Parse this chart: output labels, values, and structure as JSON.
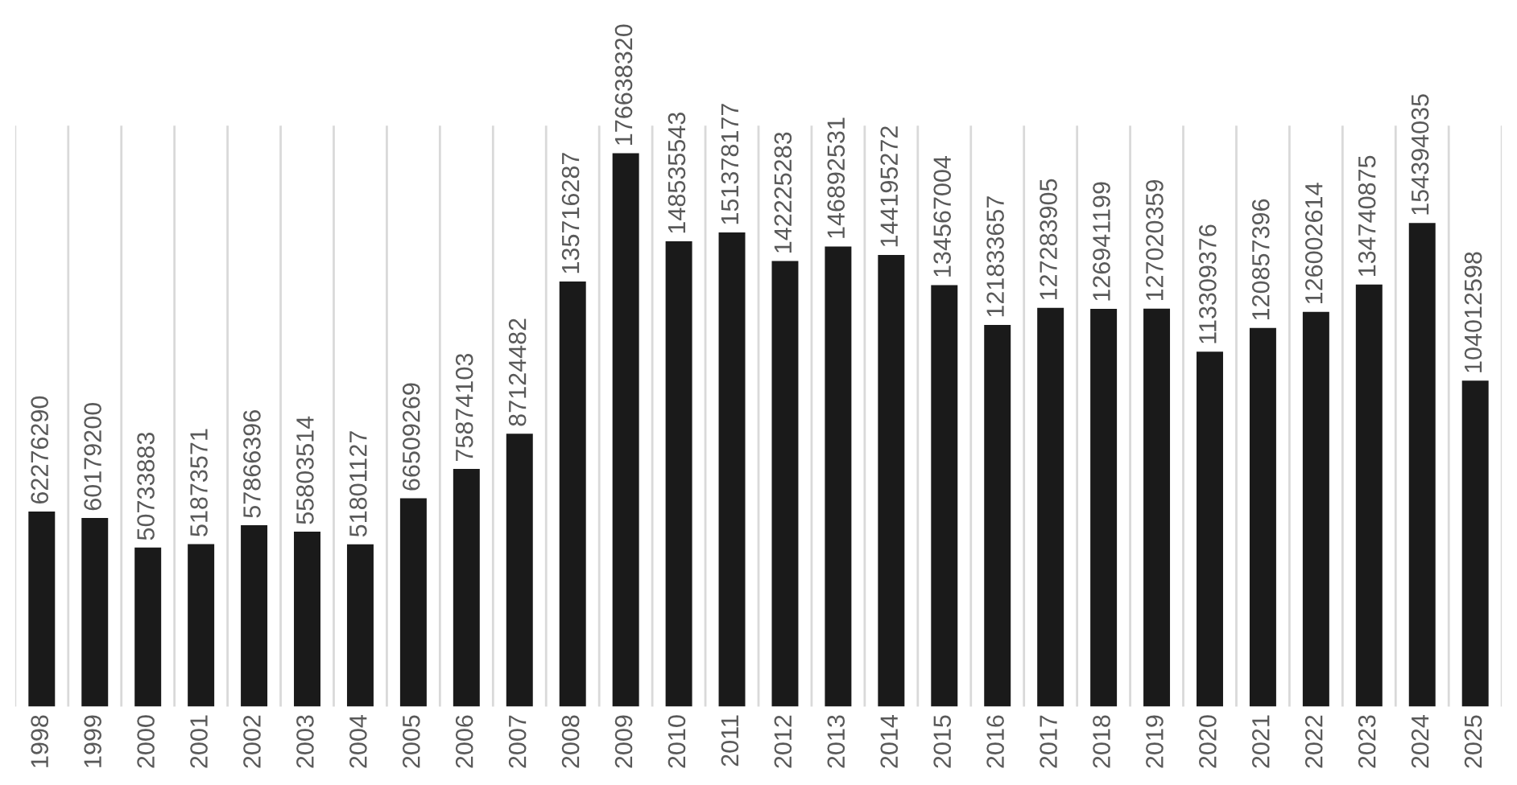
{
  "chart_data": {
    "type": "bar",
    "categories": [
      "1998",
      "1999",
      "2000",
      "2001",
      "2002",
      "2003",
      "2004",
      "2005",
      "2006",
      "2007",
      "2008",
      "2009",
      "2010",
      "2011",
      "2012",
      "2013",
      "2014",
      "2015",
      "2016",
      "2017",
      "2018",
      "2019",
      "2020",
      "2021",
      "2022",
      "2023",
      "2024",
      "2025"
    ],
    "values": [
      62276290,
      60179200,
      50733883,
      51873571,
      57866396,
      55803514,
      51801127,
      66509269,
      75874103,
      87124482,
      135716287,
      176638320,
      148535543,
      151378177,
      142225283,
      146892531,
      144195272,
      134567004,
      121833657,
      127283905,
      126941199,
      127020359,
      113309376,
      120857396,
      126002614,
      134740875,
      154394035,
      104012598
    ],
    "color": "#1a1a1a",
    "data_labels": true,
    "grid": "x"
  }
}
